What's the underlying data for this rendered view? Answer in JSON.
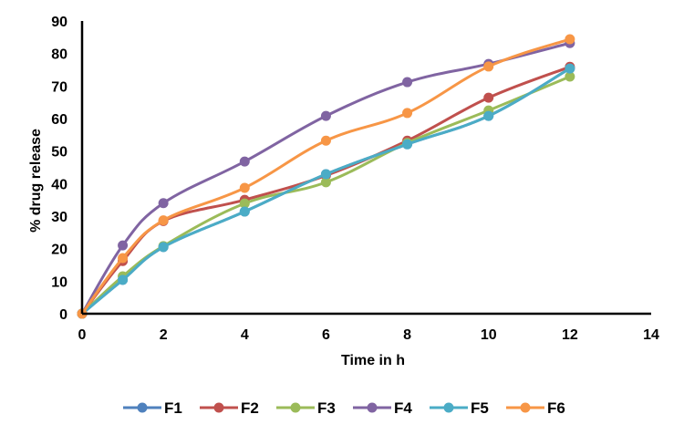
{
  "chart_data": {
    "type": "line",
    "title": "",
    "xlabel": "Time in h",
    "ylabel": "% drug release",
    "xlim": [
      0,
      14
    ],
    "ylim": [
      0,
      90
    ],
    "xticks": [
      0,
      2,
      4,
      6,
      8,
      10,
      12,
      14
    ],
    "yticks": [
      0,
      10,
      20,
      30,
      40,
      50,
      60,
      70,
      80,
      90
    ],
    "grid": false,
    "smooth": true,
    "legend_position": "bottom",
    "x": [
      0,
      1,
      2,
      4,
      6,
      8,
      10,
      12
    ],
    "series": [
      {
        "name": "F1",
        "color": "#4F81BD",
        "values": [
          0,
          10.4,
          20.5,
          31.4,
          42.9,
          52.1,
          60.8,
          75.4
        ]
      },
      {
        "name": "F2",
        "color": "#C0504D",
        "values": [
          0,
          16.2,
          28.5,
          35.0,
          42.5,
          53.2,
          66.4,
          75.9
        ]
      },
      {
        "name": "F3",
        "color": "#9BBB59",
        "values": [
          0,
          11.5,
          20.8,
          33.9,
          40.4,
          52.5,
          62.5,
          72.9
        ]
      },
      {
        "name": "F4",
        "color": "#8064A2",
        "values": [
          0,
          21.0,
          34.0,
          46.8,
          60.8,
          71.2,
          76.8,
          83.2
        ]
      },
      {
        "name": "F5",
        "color": "#4BACC6",
        "values": [
          0,
          10.4,
          20.5,
          31.4,
          42.9,
          52.1,
          60.8,
          75.4
        ]
      },
      {
        "name": "F6",
        "color": "#F79646",
        "values": [
          0,
          17.1,
          28.7,
          38.7,
          53.2,
          61.7,
          76.0,
          84.4
        ]
      }
    ]
  }
}
